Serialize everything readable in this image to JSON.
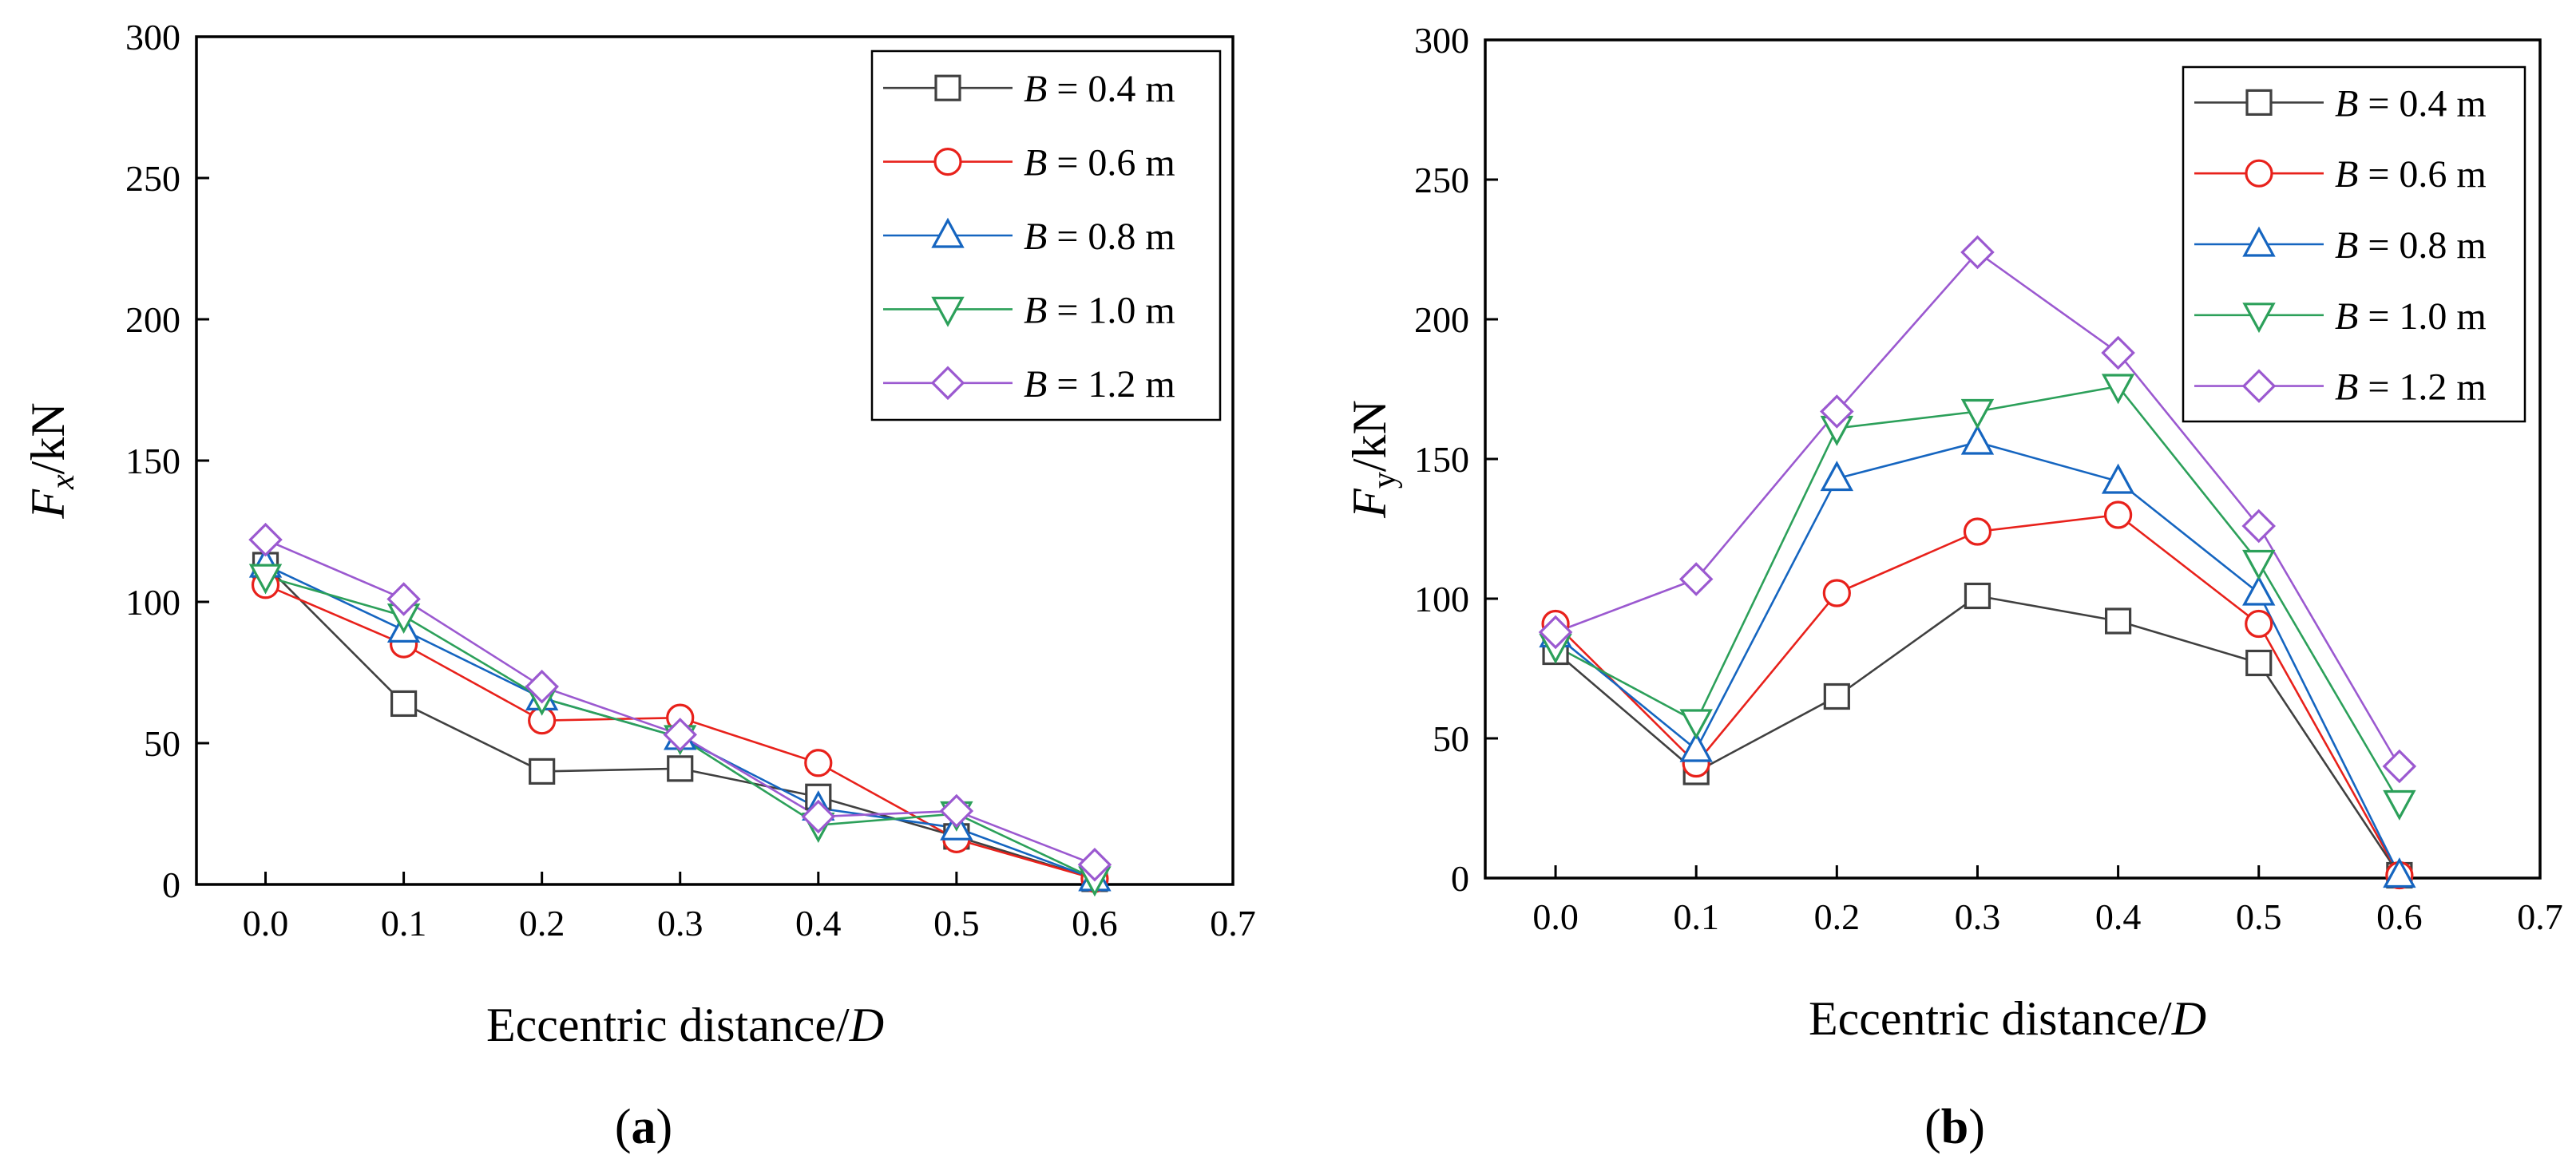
{
  "chart_data": [
    {
      "panel_label": "a",
      "type": "line",
      "xlabel": "Eccentric distance/",
      "xlabel_var": "D",
      "ylabel_var": "F",
      "ylabel_sub": "x",
      "ylabel_unit": "/kN",
      "xlim": [
        -0.05,
        0.7
      ],
      "ylim": [
        0,
        300
      ],
      "x_ticks": [
        "0.0",
        "0.1",
        "0.2",
        "0.3",
        "0.4",
        "0.5",
        "0.6",
        "0.7"
      ],
      "y_ticks": [
        "0",
        "50",
        "100",
        "150",
        "200",
        "250",
        "300"
      ],
      "x": [
        0.0,
        0.1,
        0.2,
        0.3,
        0.4,
        0.5,
        0.6
      ],
      "legend_position": "top-right",
      "series": [
        {
          "name": "B = 0.4 m",
          "legend_var": "B",
          "legend_rest": " = 0.4 m",
          "color": "#404040",
          "marker": "square",
          "values": [
            113,
            64,
            40,
            41,
            31,
            17,
            2
          ]
        },
        {
          "name": "B = 0.6 m",
          "legend_var": "B",
          "legend_rest": " = 0.6 m",
          "color": "#e8211b",
          "marker": "circle",
          "values": [
            106,
            85,
            58,
            59,
            43,
            16,
            2
          ]
        },
        {
          "name": "B = 0.8 m",
          "legend_var": "B",
          "legend_rest": " = 0.8 m",
          "color": "#1565c0",
          "marker": "triangle",
          "values": [
            113,
            90,
            66,
            52,
            27,
            20,
            2
          ]
        },
        {
          "name": "B = 1.0 m",
          "legend_var": "B",
          "legend_rest": " = 1.0 m",
          "color": "#2ca05a",
          "marker": "tri-down",
          "values": [
            109,
            95,
            66,
            52,
            21,
            25,
            2
          ]
        },
        {
          "name": "B = 1.2 m",
          "legend_var": "B",
          "legend_rest": " = 1.2 m",
          "color": "#9b59d0",
          "marker": "diamond",
          "values": [
            122,
            101,
            70,
            53,
            24,
            26,
            7
          ]
        }
      ]
    },
    {
      "panel_label": "b",
      "type": "line",
      "xlabel": "Eccentric distance/",
      "xlabel_var": "D",
      "ylabel_var": "F",
      "ylabel_sub": "y",
      "ylabel_unit": "/kN",
      "xlim": [
        -0.05,
        0.7
      ],
      "ylim": [
        0,
        300
      ],
      "x_ticks": [
        "0.0",
        "0.1",
        "0.2",
        "0.3",
        "0.4",
        "0.5",
        "0.6",
        "0.7"
      ],
      "y_ticks": [
        "0",
        "50",
        "100",
        "150",
        "200",
        "250",
        "300"
      ],
      "x": [
        0.0,
        0.1,
        0.2,
        0.3,
        0.4,
        0.5,
        0.6
      ],
      "legend_position": "top-right",
      "series": [
        {
          "name": "B = 0.4 m",
          "legend_var": "B",
          "legend_rest": " = 0.4 m",
          "color": "#404040",
          "marker": "square",
          "values": [
            81,
            38,
            65,
            101,
            92,
            77,
            1
          ]
        },
        {
          "name": "B = 0.6 m",
          "legend_var": "B",
          "legend_rest": " = 0.6 m",
          "color": "#e8211b",
          "marker": "circle",
          "values": [
            91,
            41,
            102,
            124,
            130,
            91,
            1
          ]
        },
        {
          "name": "B = 0.8 m",
          "legend_var": "B",
          "legend_rest": " = 0.8 m",
          "color": "#1565c0",
          "marker": "triangle",
          "values": [
            87,
            46,
            143,
            156,
            142,
            102,
            1
          ]
        },
        {
          "name": "B = 1.0 m",
          "legend_var": "B",
          "legend_rest": " = 1.0 m",
          "color": "#2ca05a",
          "marker": "tri-down",
          "values": [
            83,
            56,
            161,
            167,
            176,
            113,
            27
          ]
        },
        {
          "name": "B = 1.2 m",
          "legend_var": "B",
          "legend_rest": " = 1.2 m",
          "color": "#9b59d0",
          "marker": "diamond",
          "values": [
            88,
            107,
            167,
            224,
            188,
            126,
            40
          ]
        }
      ]
    }
  ]
}
